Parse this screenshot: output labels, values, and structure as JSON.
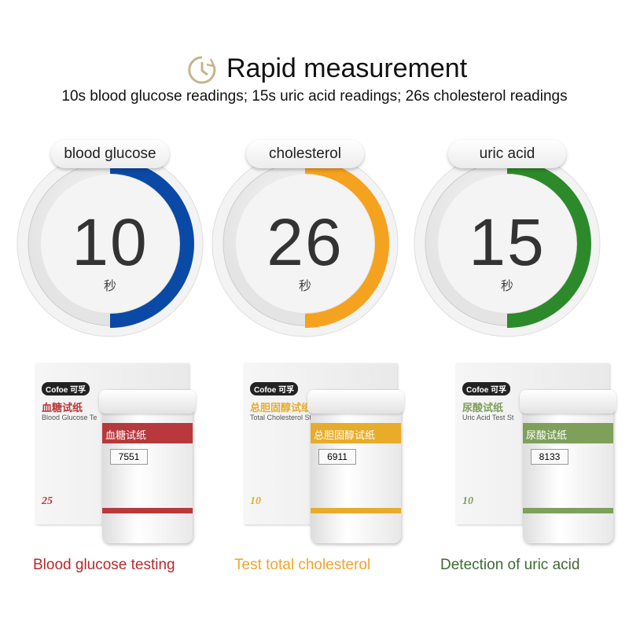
{
  "header": {
    "title": "Rapid measurement",
    "icon": "clock-icon",
    "icon_color": "#c8b48a",
    "subtitle": "10s blood glucose readings; 15s uric acid readings; 26s cholesterol readings"
  },
  "gauges": [
    {
      "label": "blood glucose",
      "value": "10",
      "unit": "秒",
      "color": "#0a4aa6"
    },
    {
      "label": "cholesterol",
      "value": "26",
      "unit": "秒",
      "color": "#f5a21e"
    },
    {
      "label": "uric acid",
      "value": "15",
      "unit": "秒",
      "color": "#2d8a2a"
    }
  ],
  "products": [
    {
      "brand": "Cofoe 可孚",
      "name_cn": "血糖试纸",
      "name_en": "Blood Glucose Te",
      "count": "25",
      "code": "7551",
      "color": "#b8383b",
      "caption": "Blood glucose testing",
      "caption_color": "#b8282b"
    },
    {
      "brand": "Cofoe 可孚",
      "name_cn": "总胆固醇试纸",
      "name_en": "Total Cholesterol St",
      "count": "10",
      "code": "6911",
      "color": "#e8ac2a",
      "caption": "Test total cholesterol",
      "caption_color": "#f2a42a"
    },
    {
      "brand": "Cofoe 可孚",
      "name_cn": "尿酸试纸",
      "name_en": "Uric Acid Test St",
      "count": "10",
      "code": "8133",
      "color": "#7ea05a",
      "caption": "Detection of uric acid",
      "caption_color": "#3c6a32"
    }
  ]
}
